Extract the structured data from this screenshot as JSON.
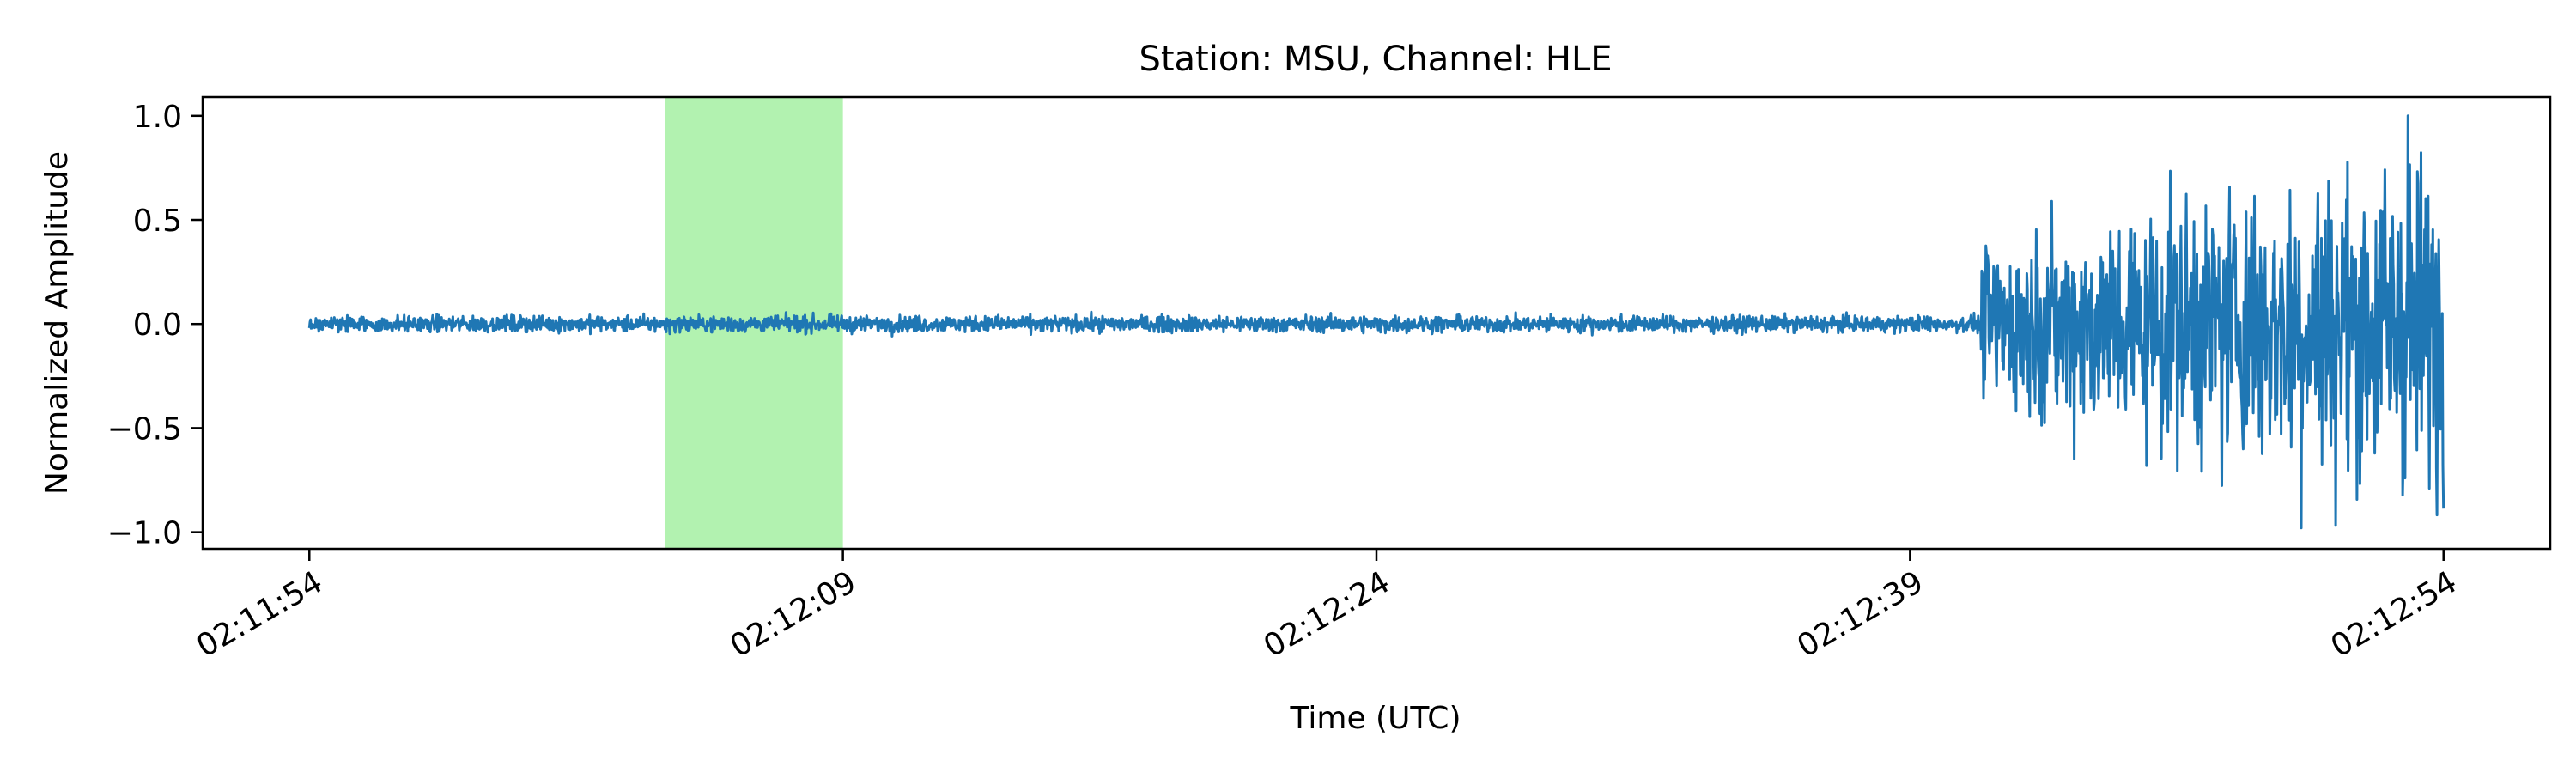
{
  "chart_data": {
    "type": "line",
    "title": "Station: MSU, Channel: HLE",
    "xlabel": "Time (UTC)",
    "ylabel": "Normalized Amplitude",
    "x_unit": "seconds",
    "x_range_seconds": [
      -2.9,
      62.9
    ],
    "xlim": [
      "02:11:51",
      "02:12:57"
    ],
    "ylim": [
      -1.08,
      1.09
    ],
    "x_ticks": [
      {
        "seconds": 0,
        "label": "02:11:54"
      },
      {
        "seconds": 15,
        "label": "02:12:09"
      },
      {
        "seconds": 30,
        "label": "02:12:24"
      },
      {
        "seconds": 45,
        "label": "02:12:39"
      },
      {
        "seconds": 60,
        "label": "02:12:54"
      }
    ],
    "y_ticks": [
      {
        "value": 1.0,
        "label": "1.0"
      },
      {
        "value": 0.5,
        "label": "0.5"
      },
      {
        "value": 0.0,
        "label": "0.0"
      },
      {
        "value": -0.5,
        "label": "−0.5"
      },
      {
        "value": -1.0,
        "label": "−1.0"
      }
    ],
    "highlight_window": {
      "start": "02:12:04",
      "end": "02:12:09",
      "color": "#b2f2b0"
    },
    "series": [
      {
        "color": "#1f77b4",
        "start": "02:11:54",
        "end": "02:12:54",
        "noise_before_onset": 0.035,
        "event_onset": "02:12:41",
        "envelope": [
          {
            "t": "02:12:41",
            "amp": 0.45
          },
          {
            "t": "02:12:44",
            "amp": 0.65
          },
          {
            "t": "02:12:47",
            "amp": 0.8
          },
          {
            "t": "02:12:51",
            "amp": 0.92
          },
          {
            "t": "02:12:54",
            "amp": 1.0
          }
        ],
        "peak": {
          "t": "02:12:53",
          "value": 1.0
        },
        "trough": {
          "t": "02:12:50",
          "value": -0.98
        }
      }
    ],
    "grid": false,
    "legend": "none"
  }
}
